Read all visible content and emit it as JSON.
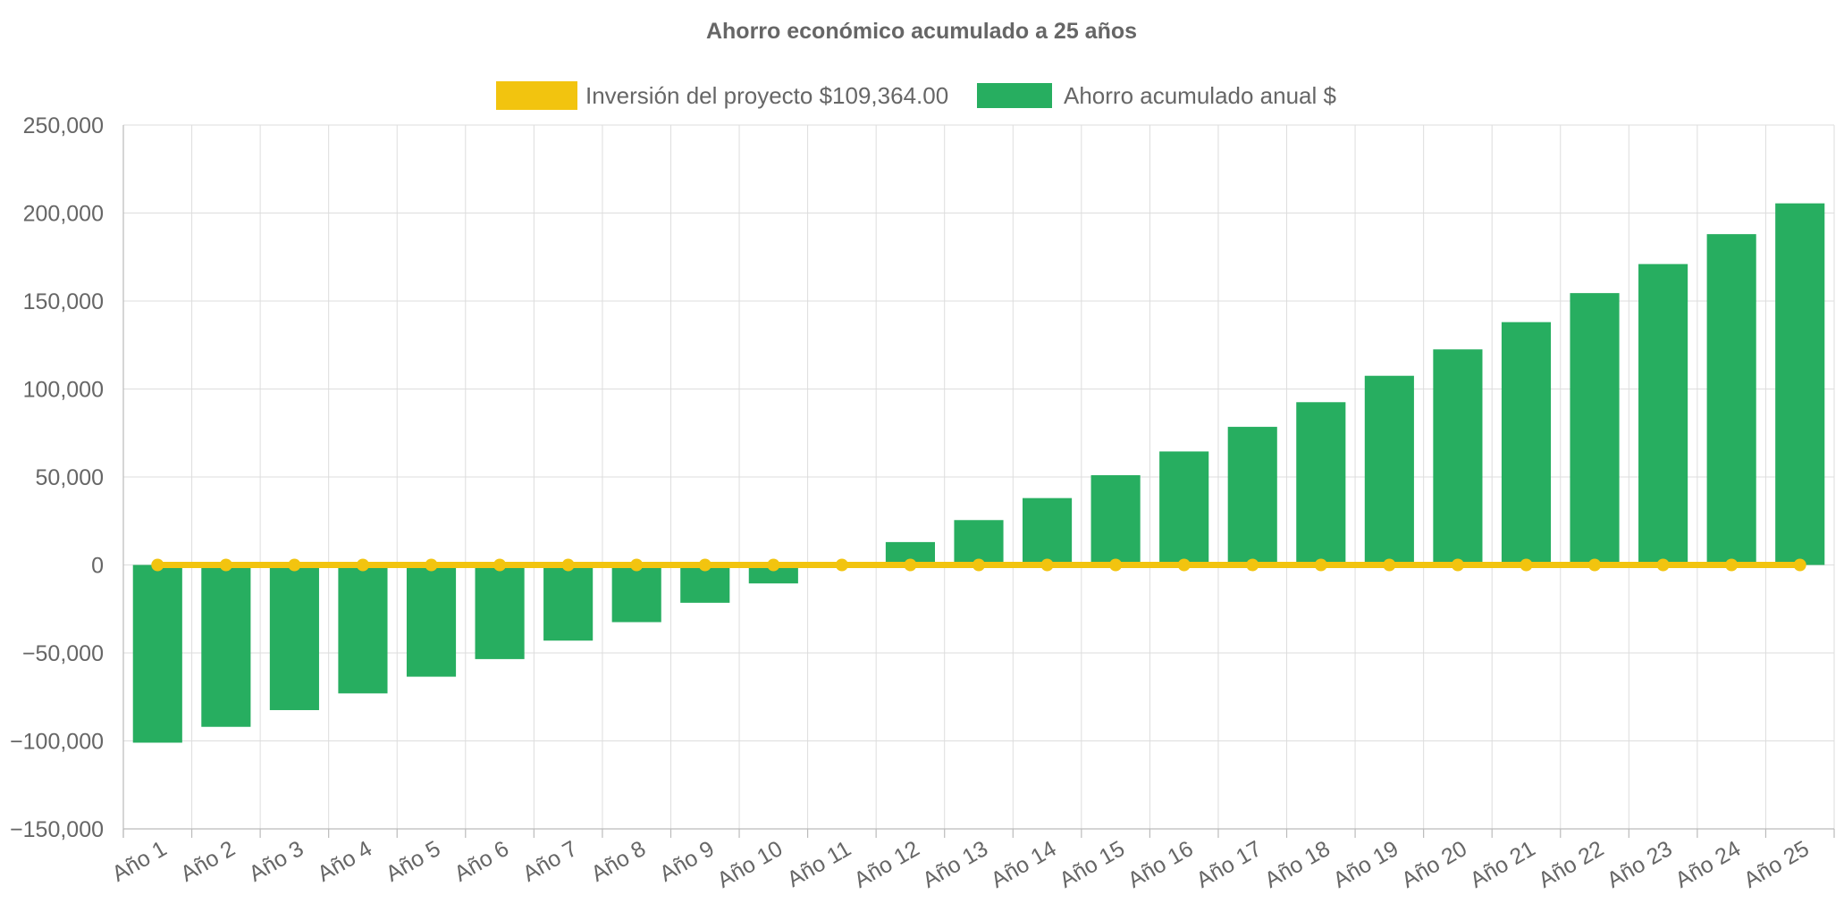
{
  "chart_data": {
    "type": "bar",
    "title": "Ahorro económico acumulado a 25 años",
    "categories": [
      "Año 1",
      "Año 2",
      "Año 3",
      "Año 4",
      "Año 5",
      "Año 6",
      "Año 7",
      "Año 8",
      "Año 9",
      "Año 10",
      "Año 11",
      "Año 12",
      "Año 13",
      "Año 14",
      "Año 15",
      "Año 16",
      "Año 17",
      "Año 18",
      "Año 19",
      "Año 20",
      "Año 21",
      "Año 22",
      "Año 23",
      "Año 24",
      "Año 25"
    ],
    "ylim": [
      -150000,
      250000
    ],
    "yticks": [
      250000,
      200000,
      150000,
      100000,
      50000,
      0,
      -50000,
      -100000,
      -150000
    ],
    "ytick_labels": [
      "250,000",
      "200,000",
      "150,000",
      "100,000",
      "50,000",
      "0",
      "−50,000",
      "−100,000",
      "−150,000"
    ],
    "grid": true,
    "legend_position": "top-center",
    "series": [
      {
        "name": "Inversión del proyecto $109,364.00",
        "kind": "line",
        "color": "#f2c40f",
        "values": [
          0,
          0,
          0,
          0,
          0,
          0,
          0,
          0,
          0,
          0,
          0,
          0,
          0,
          0,
          0,
          0,
          0,
          0,
          0,
          0,
          0,
          0,
          0,
          0,
          0
        ]
      },
      {
        "name": "Ahorro acumulado anual $",
        "kind": "bar",
        "color": "#27ae60",
        "values": [
          -101000,
          -92000,
          -82500,
          -73000,
          -63500,
          -53500,
          -43000,
          -32500,
          -21500,
          -10500,
          0,
          13000,
          25500,
          38000,
          51000,
          64500,
          78500,
          92500,
          107500,
          122500,
          138000,
          154500,
          171000,
          188000,
          205500
        ]
      }
    ]
  }
}
